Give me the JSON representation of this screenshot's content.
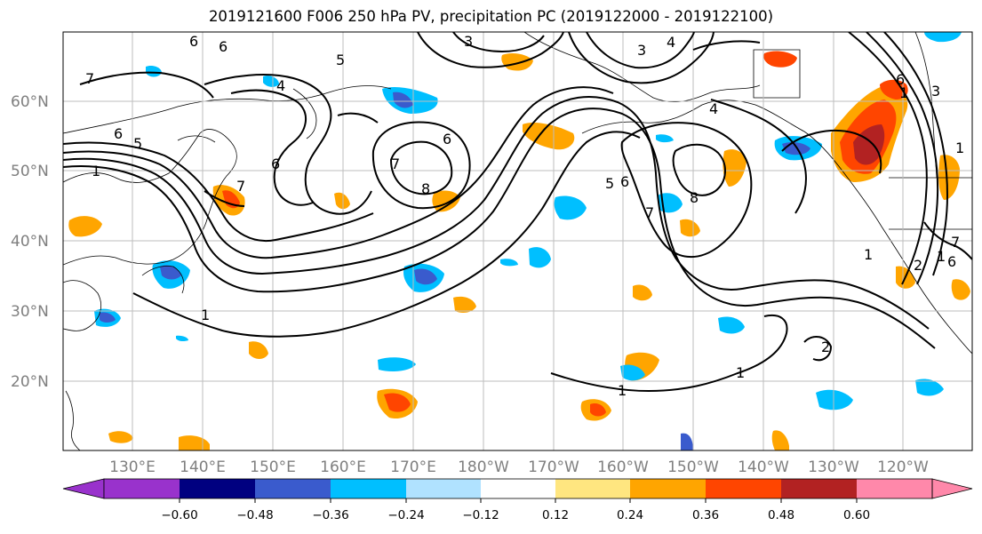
{
  "title": "2019121600 F006 250 hPa PV, precipitation PC (2019122000 - 2019122100)",
  "map": {
    "lat_labels": [
      "60°N",
      "50°N",
      "40°N",
      "30°N",
      "20°N"
    ],
    "lon_labels": [
      "130°E",
      "140°E",
      "150°E",
      "160°E",
      "170°E",
      "180°W",
      "170°W",
      "160°W",
      "150°W",
      "140°W",
      "130°W",
      "120°W"
    ],
    "pv_contour_labels": [
      "6",
      "6",
      "5",
      "7",
      "4",
      "3",
      "4",
      "3",
      "6",
      "5",
      "1",
      "7",
      "6",
      "7",
      "8",
      "6",
      "5",
      "6",
      "7",
      "8",
      "4",
      "1",
      "1",
      "1",
      "2",
      "6",
      "7",
      "3",
      "6",
      "1",
      "1",
      "2",
      "1",
      "1"
    ]
  },
  "colorbar": {
    "tick_labels": [
      "−0.60",
      "−0.48",
      "−0.36",
      "−0.24",
      "−0.12",
      "0.12",
      "0.24",
      "0.36",
      "0.48",
      "0.60"
    ],
    "colors": [
      "#9932cc",
      "#000080",
      "#3a5bcd",
      "#00bfff",
      "#b0e2ff",
      "#ffffff",
      "#ffe680",
      "#ffa500",
      "#ff4500",
      "#b22222",
      "#ff88aa"
    ]
  }
}
